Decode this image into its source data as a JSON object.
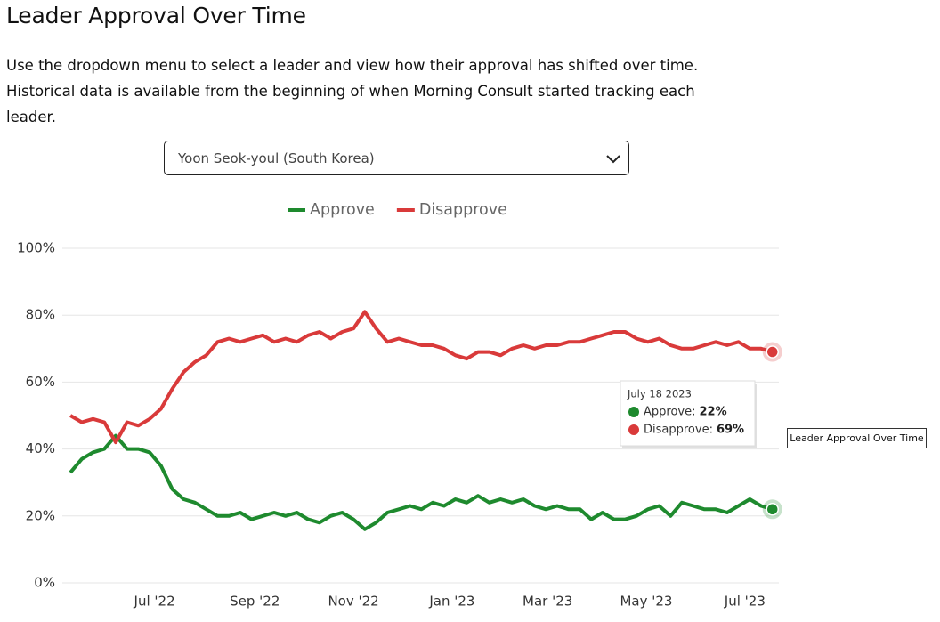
{
  "header": {
    "title": "Leader Approval Over Time",
    "description": [
      "Use the dropdown menu to select a leader and view how their approval has shifted over time.",
      "Historical data is available from the beginning of when Morning Consult started tracking each",
      "leader."
    ]
  },
  "dropdown": {
    "selected": "Yoon Seok-youl (South Korea)"
  },
  "overlay_label": "Leader Approval Over Time",
  "chart_data": {
    "type": "line",
    "x": [
      "2022-05-10",
      "2022-05-17",
      "2022-05-24",
      "2022-05-31",
      "2022-06-07",
      "2022-06-14",
      "2022-06-21",
      "2022-06-28",
      "2022-07-05",
      "2022-07-12",
      "2022-07-19",
      "2022-07-26",
      "2022-08-02",
      "2022-08-09",
      "2022-08-16",
      "2022-08-23",
      "2022-08-30",
      "2022-09-06",
      "2022-09-13",
      "2022-09-20",
      "2022-09-27",
      "2022-10-04",
      "2022-10-11",
      "2022-10-18",
      "2022-10-25",
      "2022-11-01",
      "2022-11-08",
      "2022-11-15",
      "2022-11-22",
      "2022-11-29",
      "2022-12-06",
      "2022-12-13",
      "2022-12-20",
      "2022-12-27",
      "2023-01-03",
      "2023-01-10",
      "2023-01-17",
      "2023-01-24",
      "2023-01-31",
      "2023-02-07",
      "2023-02-14",
      "2023-02-21",
      "2023-02-28",
      "2023-03-07",
      "2023-03-14",
      "2023-03-21",
      "2023-03-28",
      "2023-04-04",
      "2023-04-11",
      "2023-04-18",
      "2023-04-25",
      "2023-05-02",
      "2023-05-09",
      "2023-05-16",
      "2023-05-23",
      "2023-05-30",
      "2023-06-06",
      "2023-06-13",
      "2023-06-20",
      "2023-06-27",
      "2023-07-04",
      "2023-07-11",
      "2023-07-18"
    ],
    "series": [
      {
        "name": "Approve",
        "color": "#1e8a2e",
        "values": [
          33,
          37,
          39,
          40,
          44,
          40,
          40,
          39,
          35,
          28,
          25,
          24,
          22,
          20,
          20,
          21,
          19,
          20,
          21,
          20,
          21,
          19,
          18,
          20,
          21,
          19,
          16,
          18,
          21,
          22,
          23,
          22,
          24,
          23,
          25,
          24,
          26,
          24,
          25,
          24,
          25,
          23,
          22,
          23,
          22,
          22,
          19,
          21,
          19,
          19,
          20,
          22,
          23,
          20,
          24,
          23,
          22,
          22,
          21,
          23,
          25,
          23,
          22
        ]
      },
      {
        "name": "Disapprove",
        "color": "#d93a3a",
        "values": [
          50,
          48,
          49,
          48,
          42,
          48,
          47,
          49,
          52,
          58,
          63,
          66,
          68,
          72,
          73,
          72,
          73,
          74,
          72,
          73,
          72,
          74,
          75,
          73,
          75,
          76,
          81,
          76,
          72,
          73,
          72,
          71,
          71,
          70,
          68,
          67,
          69,
          69,
          68,
          70,
          71,
          70,
          71,
          71,
          72,
          72,
          73,
          74,
          75,
          75,
          73,
          72,
          73,
          71,
          70,
          70,
          71,
          72,
          71,
          72,
          70,
          70,
          69
        ]
      }
    ],
    "xlim": [
      "2022-05-05",
      "2023-07-22"
    ],
    "xticks": [
      {
        "value": "2022-07-01",
        "label": "Jul '22"
      },
      {
        "value": "2022-09-01",
        "label": "Sep '22"
      },
      {
        "value": "2022-11-01",
        "label": "Nov '22"
      },
      {
        "value": "2023-01-01",
        "label": "Jan '23"
      },
      {
        "value": "2023-03-01",
        "label": "Mar '23"
      },
      {
        "value": "2023-05-01",
        "label": "May '23"
      },
      {
        "value": "2023-07-01",
        "label": "Jul '23"
      }
    ],
    "ylim": [
      0,
      100
    ],
    "yticks": [
      {
        "value": 0,
        "label": "0%"
      },
      {
        "value": 20,
        "label": "20%"
      },
      {
        "value": 40,
        "label": "40%"
      },
      {
        "value": 60,
        "label": "60%"
      },
      {
        "value": 80,
        "label": "80%"
      },
      {
        "value": 100,
        "label": "100%"
      }
    ],
    "grid": true,
    "legend": "top",
    "tooltip": {
      "title": "July 18 2023",
      "entries": [
        {
          "label": "Approve:",
          "value": "22%"
        },
        {
          "label": "Disapprove:",
          "value": "69%"
        }
      ]
    }
  }
}
